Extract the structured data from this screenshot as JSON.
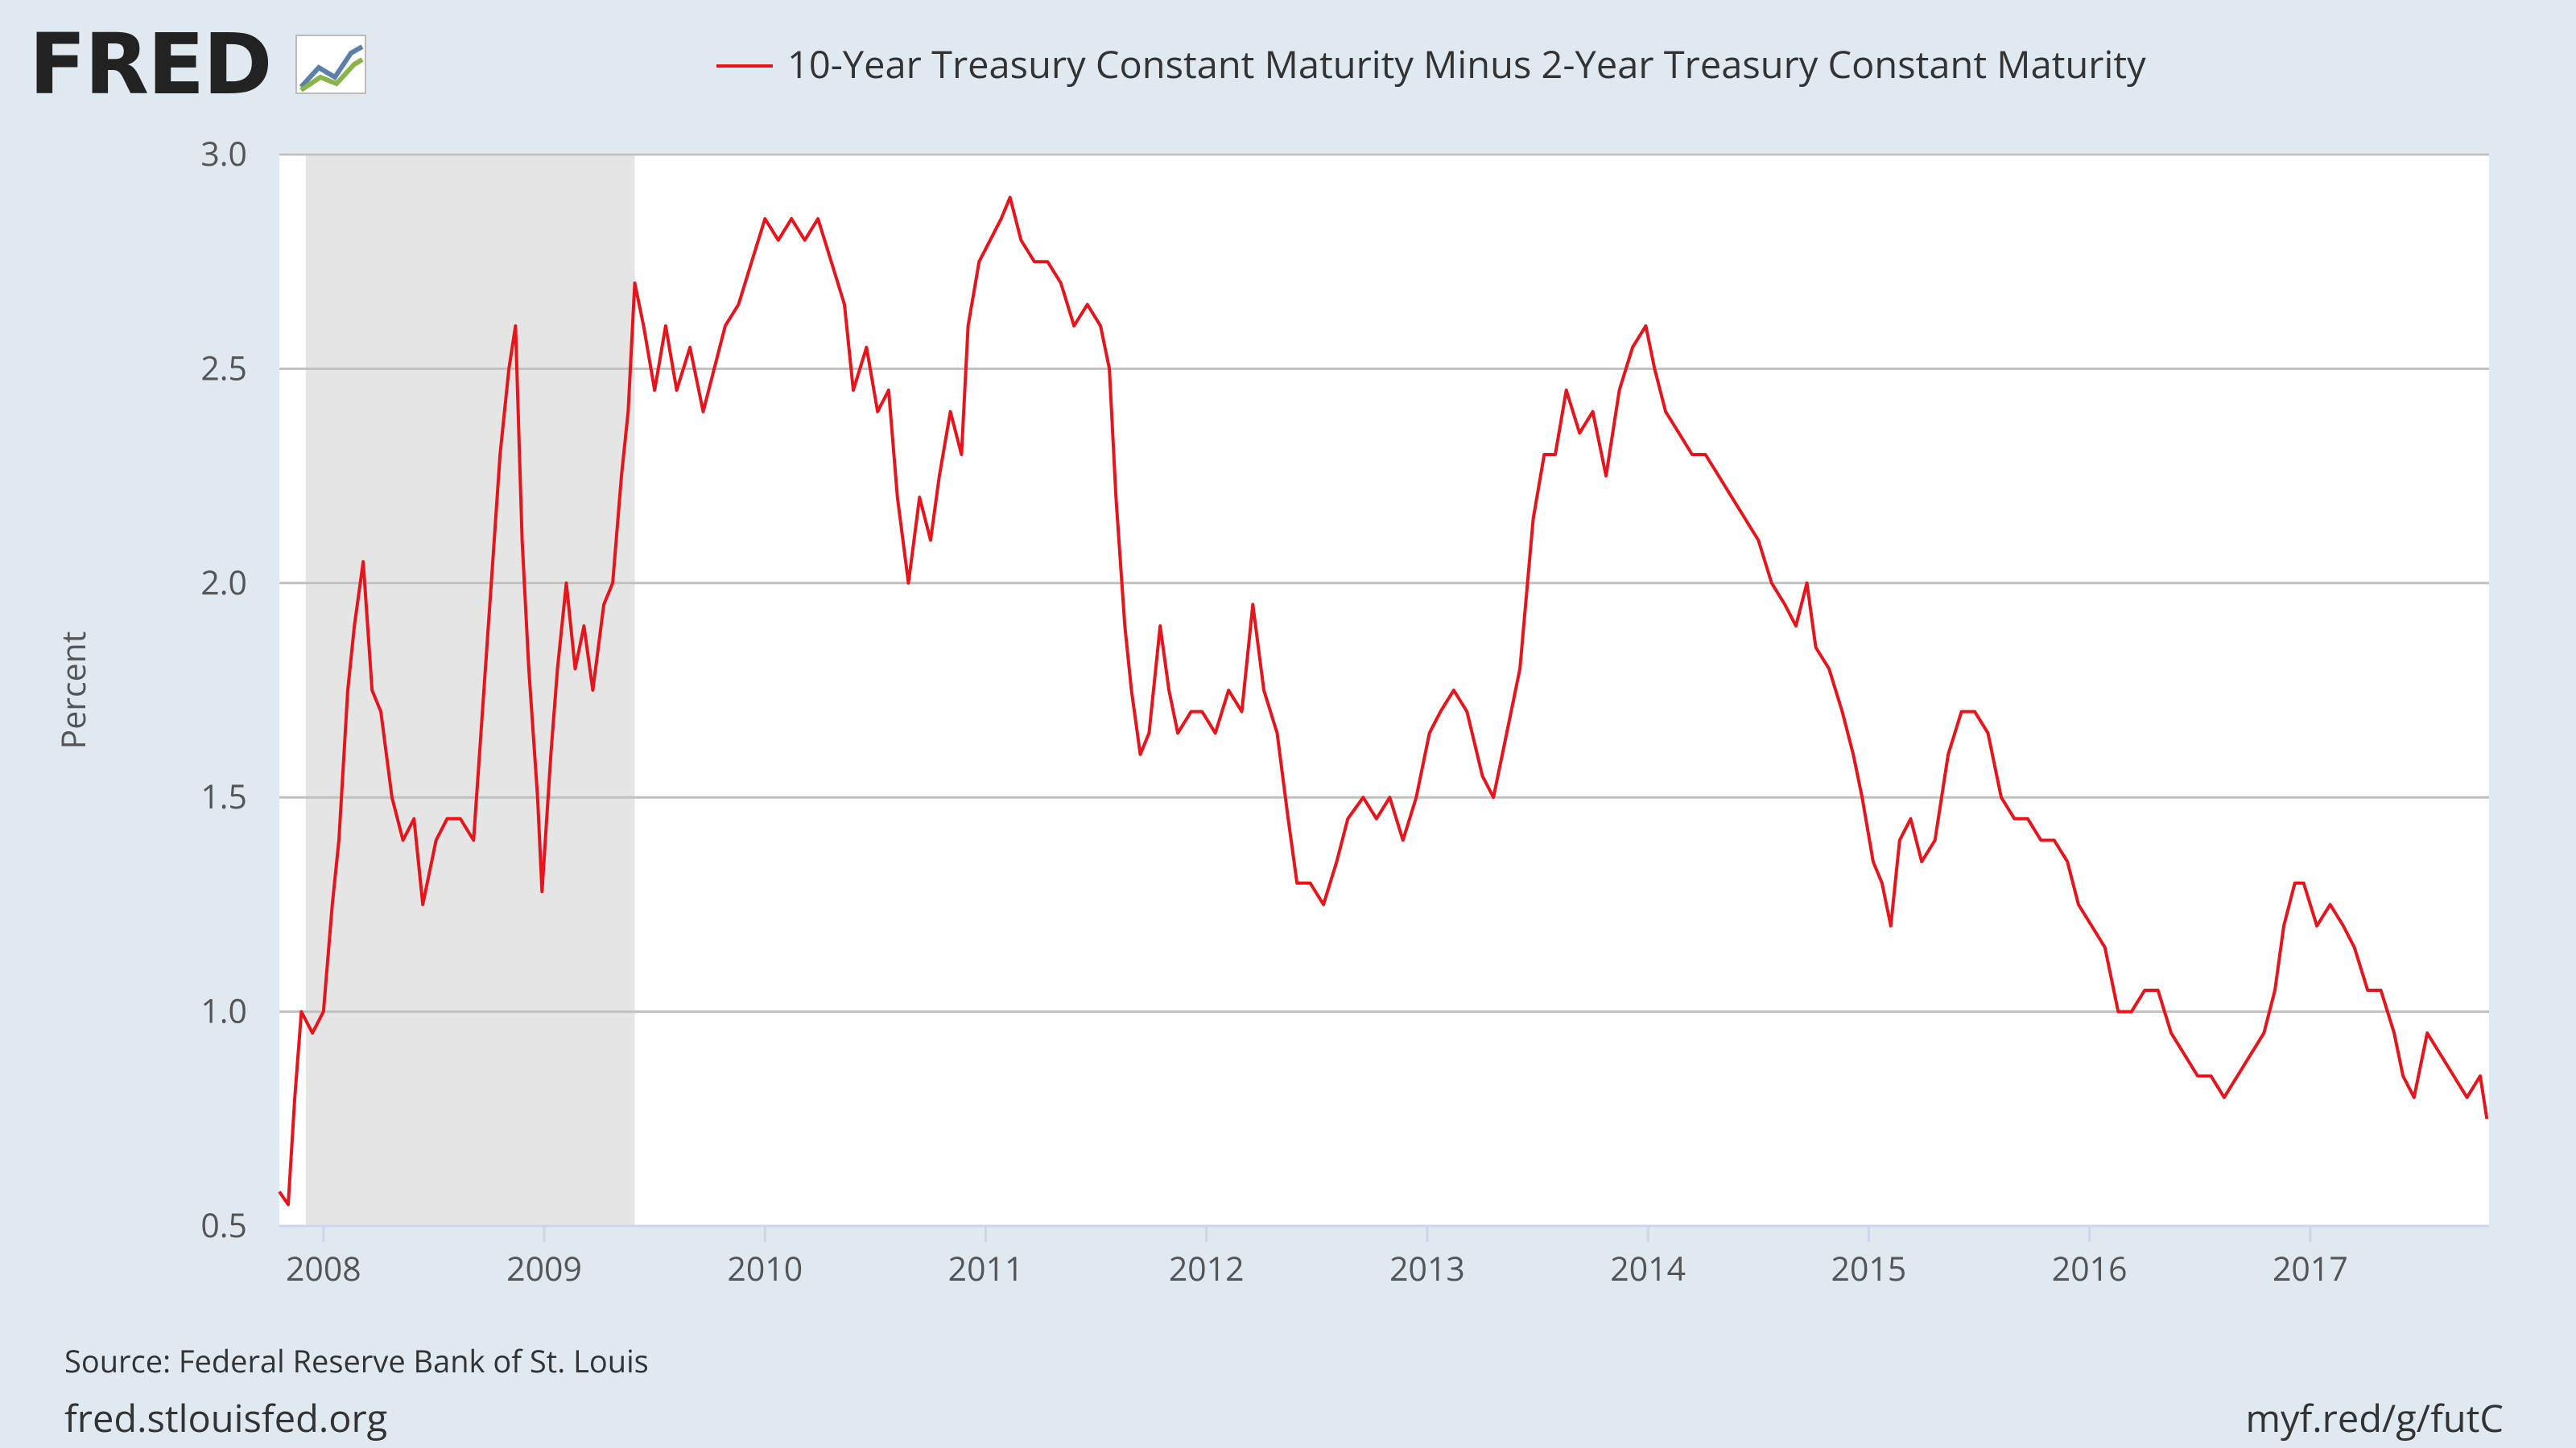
{
  "chart_data": {
    "type": "line",
    "brand": "FRED",
    "x": [
      2007.8,
      2007.84,
      2007.87,
      2007.9,
      2007.95,
      2008.0,
      2008.04,
      2008.07,
      2008.11,
      2008.14,
      2008.18,
      2008.22,
      2008.26,
      2008.31,
      2008.36,
      2008.41,
      2008.45,
      2008.51,
      2008.56,
      2008.62,
      2008.68,
      2008.72,
      2008.76,
      2008.8,
      2008.84,
      2008.87,
      2008.9,
      2008.93,
      2008.97,
      2008.99,
      2009.03,
      2009.06,
      2009.1,
      2009.14,
      2009.18,
      2009.22,
      2009.27,
      2009.31,
      2009.35,
      2009.38,
      2009.41,
      2009.45,
      2009.5,
      2009.55,
      2009.6,
      2009.66,
      2009.72,
      2009.77,
      2009.82,
      2009.88,
      2009.94,
      2010.0,
      2010.06,
      2010.12,
      2010.18,
      2010.24,
      2010.3,
      2010.36,
      2010.4,
      2010.46,
      2010.51,
      2010.56,
      2010.6,
      2010.65,
      2010.7,
      2010.75,
      2010.79,
      2010.84,
      2010.89,
      2010.92,
      2010.97,
      2011.02,
      2011.07,
      2011.11,
      2011.16,
      2011.22,
      2011.28,
      2011.34,
      2011.4,
      2011.46,
      2011.52,
      2011.56,
      2011.59,
      2011.63,
      2011.66,
      2011.7,
      2011.74,
      2011.79,
      2011.83,
      2011.87,
      2011.93,
      2011.98,
      2012.04,
      2012.1,
      2012.16,
      2012.21,
      2012.26,
      2012.32,
      2012.37,
      2012.41,
      2012.47,
      2012.53,
      2012.59,
      2012.64,
      2012.71,
      2012.77,
      2012.83,
      2012.89,
      2012.95,
      2013.01,
      2013.06,
      2013.12,
      2013.18,
      2013.25,
      2013.3,
      2013.36,
      2013.42,
      2013.48,
      2013.53,
      2013.58,
      2013.63,
      2013.69,
      2013.75,
      2013.81,
      2013.87,
      2013.93,
      2013.99,
      2014.03,
      2014.08,
      2014.14,
      2014.2,
      2014.26,
      2014.32,
      2014.38,
      2014.44,
      2014.5,
      2014.56,
      2014.62,
      2014.67,
      2014.72,
      2014.76,
      2014.82,
      2014.88,
      2014.93,
      2014.97,
      2015.02,
      2015.06,
      2015.1,
      2015.14,
      2015.19,
      2015.24,
      2015.3,
      2015.36,
      2015.42,
      2015.48,
      2015.54,
      2015.6,
      2015.66,
      2015.72,
      2015.78,
      2015.84,
      2015.9,
      2015.95,
      2016.01,
      2016.07,
      2016.13,
      2016.19,
      2016.25,
      2016.31,
      2016.37,
      2016.43,
      2016.49,
      2016.55,
      2016.61,
      2016.67,
      2016.73,
      2016.79,
      2016.84,
      2016.88,
      2016.93,
      2016.97,
      2017.03,
      2017.09,
      2017.15,
      2017.2,
      2017.26,
      2017.32,
      2017.38,
      2017.42,
      2017.47,
      2017.53,
      2017.59,
      2017.65,
      2017.71,
      2017.77,
      2017.8
    ],
    "series": [
      {
        "name": "10-Year Treasury Constant Maturity Minus 2-Year Treasury Constant Maturity",
        "color": "#e8141c",
        "values": [
          0.58,
          0.55,
          0.8,
          1.0,
          0.95,
          1.0,
          1.25,
          1.4,
          1.75,
          1.9,
          2.05,
          1.75,
          1.7,
          1.5,
          1.4,
          1.45,
          1.25,
          1.4,
          1.45,
          1.45,
          1.4,
          1.7,
          2.0,
          2.3,
          2.5,
          2.6,
          2.1,
          1.8,
          1.5,
          1.28,
          1.6,
          1.8,
          2.0,
          1.8,
          1.9,
          1.75,
          1.95,
          2.0,
          2.25,
          2.4,
          2.7,
          2.6,
          2.45,
          2.6,
          2.45,
          2.55,
          2.4,
          2.5,
          2.6,
          2.65,
          2.75,
          2.85,
          2.8,
          2.85,
          2.8,
          2.85,
          2.75,
          2.65,
          2.45,
          2.55,
          2.4,
          2.45,
          2.2,
          2.0,
          2.2,
          2.1,
          2.25,
          2.4,
          2.3,
          2.6,
          2.75,
          2.8,
          2.85,
          2.9,
          2.8,
          2.75,
          2.75,
          2.7,
          2.6,
          2.65,
          2.6,
          2.5,
          2.2,
          1.9,
          1.75,
          1.6,
          1.65,
          1.9,
          1.75,
          1.65,
          1.7,
          1.7,
          1.65,
          1.75,
          1.7,
          1.95,
          1.75,
          1.65,
          1.45,
          1.3,
          1.3,
          1.25,
          1.35,
          1.45,
          1.5,
          1.45,
          1.5,
          1.4,
          1.5,
          1.65,
          1.7,
          1.75,
          1.7,
          1.55,
          1.5,
          1.65,
          1.8,
          2.15,
          2.3,
          2.3,
          2.45,
          2.35,
          2.4,
          2.25,
          2.45,
          2.55,
          2.6,
          2.5,
          2.4,
          2.35,
          2.3,
          2.3,
          2.25,
          2.2,
          2.15,
          2.1,
          2.0,
          1.95,
          1.9,
          2.0,
          1.85,
          1.8,
          1.7,
          1.6,
          1.5,
          1.35,
          1.3,
          1.2,
          1.4,
          1.45,
          1.35,
          1.4,
          1.6,
          1.7,
          1.7,
          1.65,
          1.5,
          1.45,
          1.45,
          1.4,
          1.4,
          1.35,
          1.25,
          1.2,
          1.15,
          1.0,
          1.0,
          1.05,
          1.05,
          0.95,
          0.9,
          0.85,
          0.85,
          0.8,
          0.85,
          0.9,
          0.95,
          1.05,
          1.2,
          1.3,
          1.3,
          1.2,
          1.25,
          1.2,
          1.15,
          1.05,
          1.05,
          0.95,
          0.85,
          0.8,
          0.95,
          0.9,
          0.85,
          0.8,
          0.85,
          0.75
        ]
      }
    ],
    "xlim": [
      2007.8,
      2017.81
    ],
    "xticks": [
      2008,
      2009,
      2010,
      2011,
      2012,
      2013,
      2014,
      2015,
      2016,
      2017
    ],
    "ylim": [
      0.5,
      3.0
    ],
    "yticks": [
      0.5,
      {
        "value": 1,
        "label": "1.0"
      },
      1.5,
      {
        "value": 2,
        "label": "2.0"
      },
      2.5,
      {
        "value": 3,
        "label": "3.0"
      }
    ],
    "ylabel": "Percent",
    "grid": true,
    "recession": [
      [
        2007.92,
        2009.41
      ]
    ],
    "source": "Source: Federal Reserve Bank of St. Louis",
    "site": "fred.stlouisfed.org",
    "short_link": "myf.red/g/futC"
  }
}
